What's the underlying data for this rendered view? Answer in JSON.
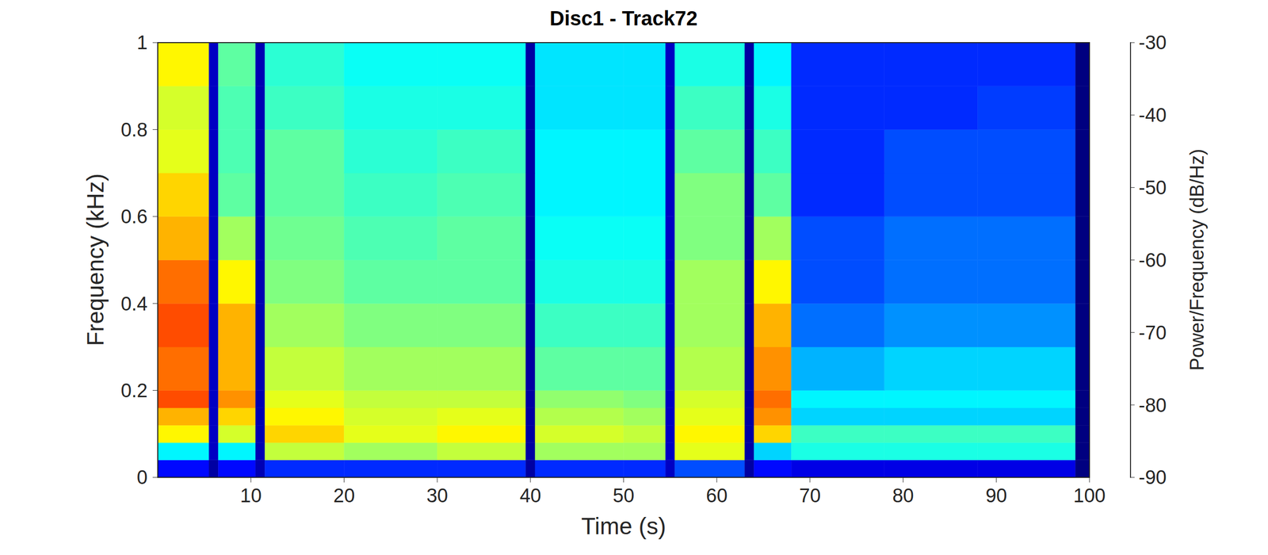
{
  "chart_data": {
    "type": "heatmap",
    "title": "Disc1 - Track72",
    "x_label": "Time (s)",
    "y_label": "Frequency (kHz)",
    "xlim": [
      0,
      100
    ],
    "xticks": [
      10,
      20,
      30,
      40,
      50,
      60,
      70,
      80,
      90,
      100
    ],
    "ylim": [
      0,
      1
    ],
    "yticks": [
      0,
      0.2,
      0.4,
      0.6,
      0.8,
      1
    ],
    "x_edges": [
      0,
      5.5,
      6.5,
      10.5,
      11.5,
      20,
      30,
      39.5,
      40.5,
      50,
      54.5,
      55.5,
      63,
      64,
      68,
      78,
      88,
      98.5,
      100
    ],
    "y_edges": [
      0,
      0.04,
      0.08,
      0.12,
      0.16,
      0.2,
      0.3,
      0.4,
      0.5,
      0.6,
      0.7,
      0.8,
      0.9,
      1
    ],
    "cells": [
      [
        -82,
        -88,
        -82,
        -87,
        -80,
        -80,
        -80,
        -88,
        -80,
        -80,
        -86,
        -78,
        -88,
        -82,
        -84,
        -84,
        -84,
        -90
      ],
      [
        -68,
        -86,
        -68,
        -87,
        -56,
        -58,
        -56,
        -88,
        -58,
        -58,
        -86,
        -54,
        -88,
        -70,
        -66,
        -66,
        -66,
        -90
      ],
      [
        -52,
        -86,
        -55,
        -87,
        -50,
        -54,
        -52,
        -88,
        -55,
        -56,
        -86,
        -52,
        -88,
        -50,
        -64,
        -64,
        -64,
        -90
      ],
      [
        -48,
        -86,
        -50,
        -87,
        -52,
        -55,
        -54,
        -88,
        -57,
        -58,
        -86,
        -54,
        -88,
        -46,
        -70,
        -70,
        -70,
        -90
      ],
      [
        -42,
        -86,
        -46,
        -87,
        -54,
        -56,
        -56,
        -88,
        -59,
        -60,
        -86,
        -55,
        -88,
        -44,
        -68,
        -68,
        -68,
        -90
      ],
      [
        -44,
        -86,
        -48,
        -87,
        -56,
        -58,
        -58,
        -88,
        -62,
        -62,
        -86,
        -57,
        -88,
        -46,
        -72,
        -70,
        -70,
        -90
      ],
      [
        -42,
        -86,
        -48,
        -87,
        -58,
        -60,
        -60,
        -88,
        -64,
        -64,
        -86,
        -58,
        -88,
        -48,
        -76,
        -74,
        -74,
        -90
      ],
      [
        -44,
        -86,
        -52,
        -87,
        -60,
        -62,
        -62,
        -88,
        -66,
        -66,
        -86,
        -58,
        -88,
        -52,
        -78,
        -76,
        -76,
        -90
      ],
      [
        -48,
        -86,
        -58,
        -87,
        -61,
        -63,
        -62,
        -88,
        -67,
        -67,
        -86,
        -60,
        -88,
        -58,
        -78,
        -76,
        -76,
        -90
      ],
      [
        -50,
        -86,
        -62,
        -87,
        -62,
        -64,
        -63,
        -88,
        -68,
        -68,
        -86,
        -60,
        -88,
        -62,
        -80,
        -78,
        -78,
        -90
      ],
      [
        -54,
        -86,
        -63,
        -87,
        -62,
        -65,
        -64,
        -88,
        -68,
        -68,
        -86,
        -62,
        -88,
        -64,
        -80,
        -78,
        -78,
        -90
      ],
      [
        -55,
        -86,
        -63,
        -87,
        -64,
        -66,
        -66,
        -88,
        -69,
        -69,
        -86,
        -64,
        -88,
        -66,
        -80,
        -80,
        -79,
        -90
      ],
      [
        -52,
        -86,
        -62,
        -87,
        -65,
        -67,
        -67,
        -88,
        -69,
        -69,
        -86,
        -66,
        -88,
        -68,
        -80,
        -80,
        -80,
        -90
      ]
    ],
    "colorbar": {
      "label": "Power/Frequency (dB/Hz)",
      "lim": [
        -90,
        -30
      ],
      "ticks": [
        -90,
        -80,
        -70,
        -60,
        -50,
        -40,
        -30
      ]
    }
  }
}
